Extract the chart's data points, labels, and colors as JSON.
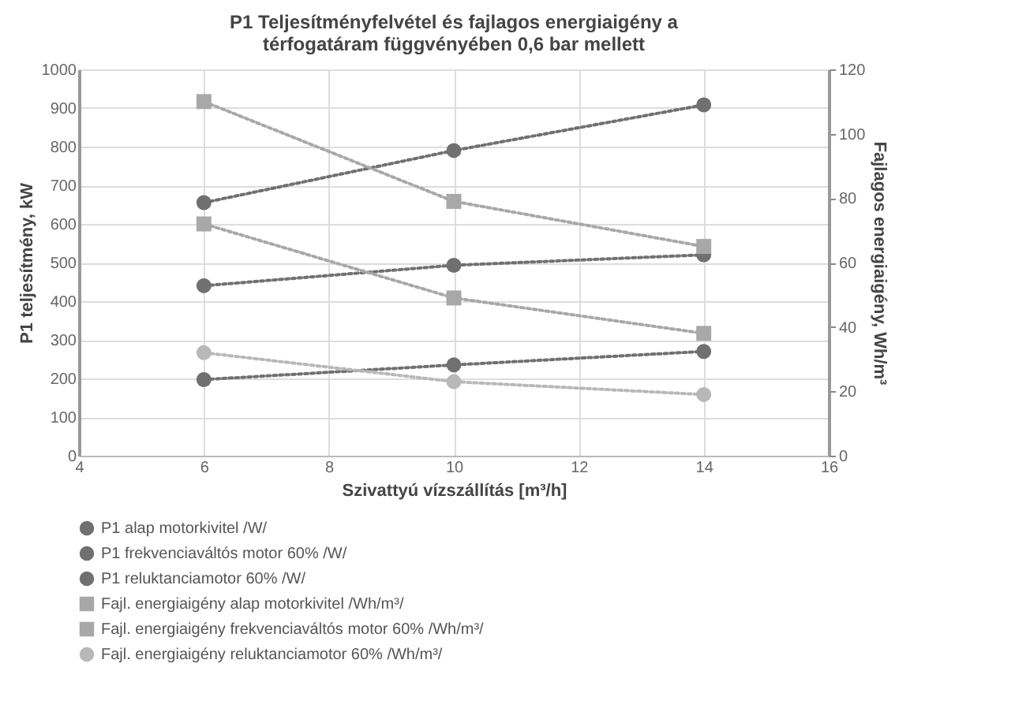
{
  "chart_data": {
    "type": "line",
    "title": "P1 Teljesítményfelvétel és fajlagos energiaigény a\ntérfogatáram függvényében 0,6 bar mellett",
    "xlabel": "Szivattyú vízszállítás [m³/h]",
    "ylabel": "P1 teljesítmény, kW",
    "y2label": "Fajlagos energiaigény, Wh/m³",
    "x": [
      6,
      10,
      14
    ],
    "xlim": [
      4,
      16
    ],
    "xticks": [
      4,
      6,
      8,
      10,
      12,
      14,
      16
    ],
    "ylim": [
      0,
      1000
    ],
    "yticks": [
      0,
      100,
      200,
      300,
      400,
      500,
      600,
      700,
      800,
      900,
      1000
    ],
    "y2lim": [
      0,
      120
    ],
    "y2ticks": [
      0,
      20,
      40,
      60,
      80,
      100,
      120
    ],
    "grid": true,
    "legend": "bottom",
    "line_style": "dotted",
    "series": [
      {
        "name": "P1 alap motorkivitel /W/",
        "color": "#707070",
        "marker": "circle",
        "values": [
          655,
          790,
          908
        ]
      },
      {
        "name": "P1 frekvenciaváltós motor 60% /W/",
        "color": "#707070",
        "marker": "circle",
        "values": [
          440,
          493,
          520
        ]
      },
      {
        "name": "P1 reluktanciamotor 60%  /W/",
        "color": "#707070",
        "marker": "circle",
        "values": [
          197,
          235,
          270
        ]
      },
      {
        "name": "Fajl. energiaigény alap motorkivitel /Wh/m³/",
        "color": "#a8a8a8",
        "marker": "square",
        "axis": "y2",
        "values": [
          110,
          79,
          65
        ]
      },
      {
        "name": "Fajl. energiaigény frekvenciaváltós motor 60% /Wh/m³/",
        "color": "#a8a8a8",
        "marker": "square",
        "axis": "y2",
        "values": [
          72,
          49,
          38
        ]
      },
      {
        "name": "Fajl. energiaigény reluktanciamotor 60% /Wh/m³/",
        "color": "#b8b8b8",
        "marker": "circle",
        "axis": "y2",
        "values": [
          32,
          23,
          19
        ]
      }
    ]
  }
}
